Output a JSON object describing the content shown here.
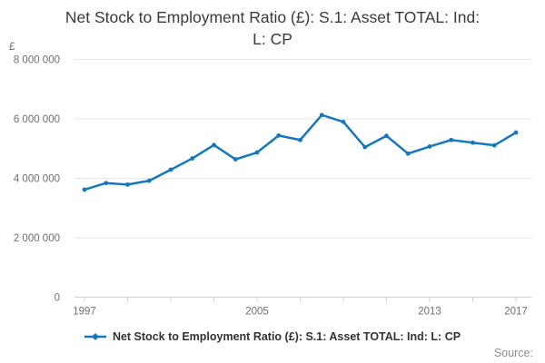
{
  "title_lines": [
    "Net Stock to Employment Ratio (£): S.1: Asset TOTAL: Ind:",
    "L: CP"
  ],
  "y_unit": "£",
  "legend": {
    "label": "Net Stock to Employment Ratio (£): S.1: Asset TOTAL: Ind: L: CP"
  },
  "source_label": "Source:",
  "colors": {
    "series": "#1478be",
    "grid": "#e6e6e6",
    "axis": "#ccd4e2",
    "tick_label": "#6e6e6e",
    "title": "#3a3a3a",
    "legend_text": "#333333",
    "source_text": "#8d8d8d"
  },
  "chart_data": {
    "type": "line",
    "title": "Net Stock to Employment Ratio (£): S.1: Asset TOTAL: Ind: L: CP",
    "xlabel": "",
    "ylabel": "£",
    "ylim": [
      0,
      8000000
    ],
    "x": [
      1997,
      1998,
      1999,
      2000,
      2001,
      2002,
      2003,
      2004,
      2005,
      2006,
      2007,
      2008,
      2009,
      2010,
      2011,
      2012,
      2013,
      2014,
      2015,
      2016,
      2017
    ],
    "series": [
      {
        "name": "Net Stock to Employment Ratio (£): S.1: Asset TOTAL: Ind: L: CP",
        "values": [
          3620000,
          3840000,
          3790000,
          3920000,
          4290000,
          4670000,
          5120000,
          4640000,
          4870000,
          5440000,
          5290000,
          6130000,
          5900000,
          5050000,
          5430000,
          4830000,
          5070000,
          5290000,
          5200000,
          5110000,
          5540000
        ]
      }
    ],
    "y_ticks": [
      0,
      2000000,
      4000000,
      6000000,
      8000000
    ],
    "y_tick_labels": [
      "0",
      "2 000 000",
      "4 000 000",
      "6 000 000",
      "8 000 000"
    ],
    "x_tick_step_years": 2,
    "x_ticks_labeled": [
      1997,
      2005,
      2013,
      2017
    ],
    "grid": "horizontal-only",
    "legend_position": "bottom-center",
    "marker": "diamond-dot"
  }
}
